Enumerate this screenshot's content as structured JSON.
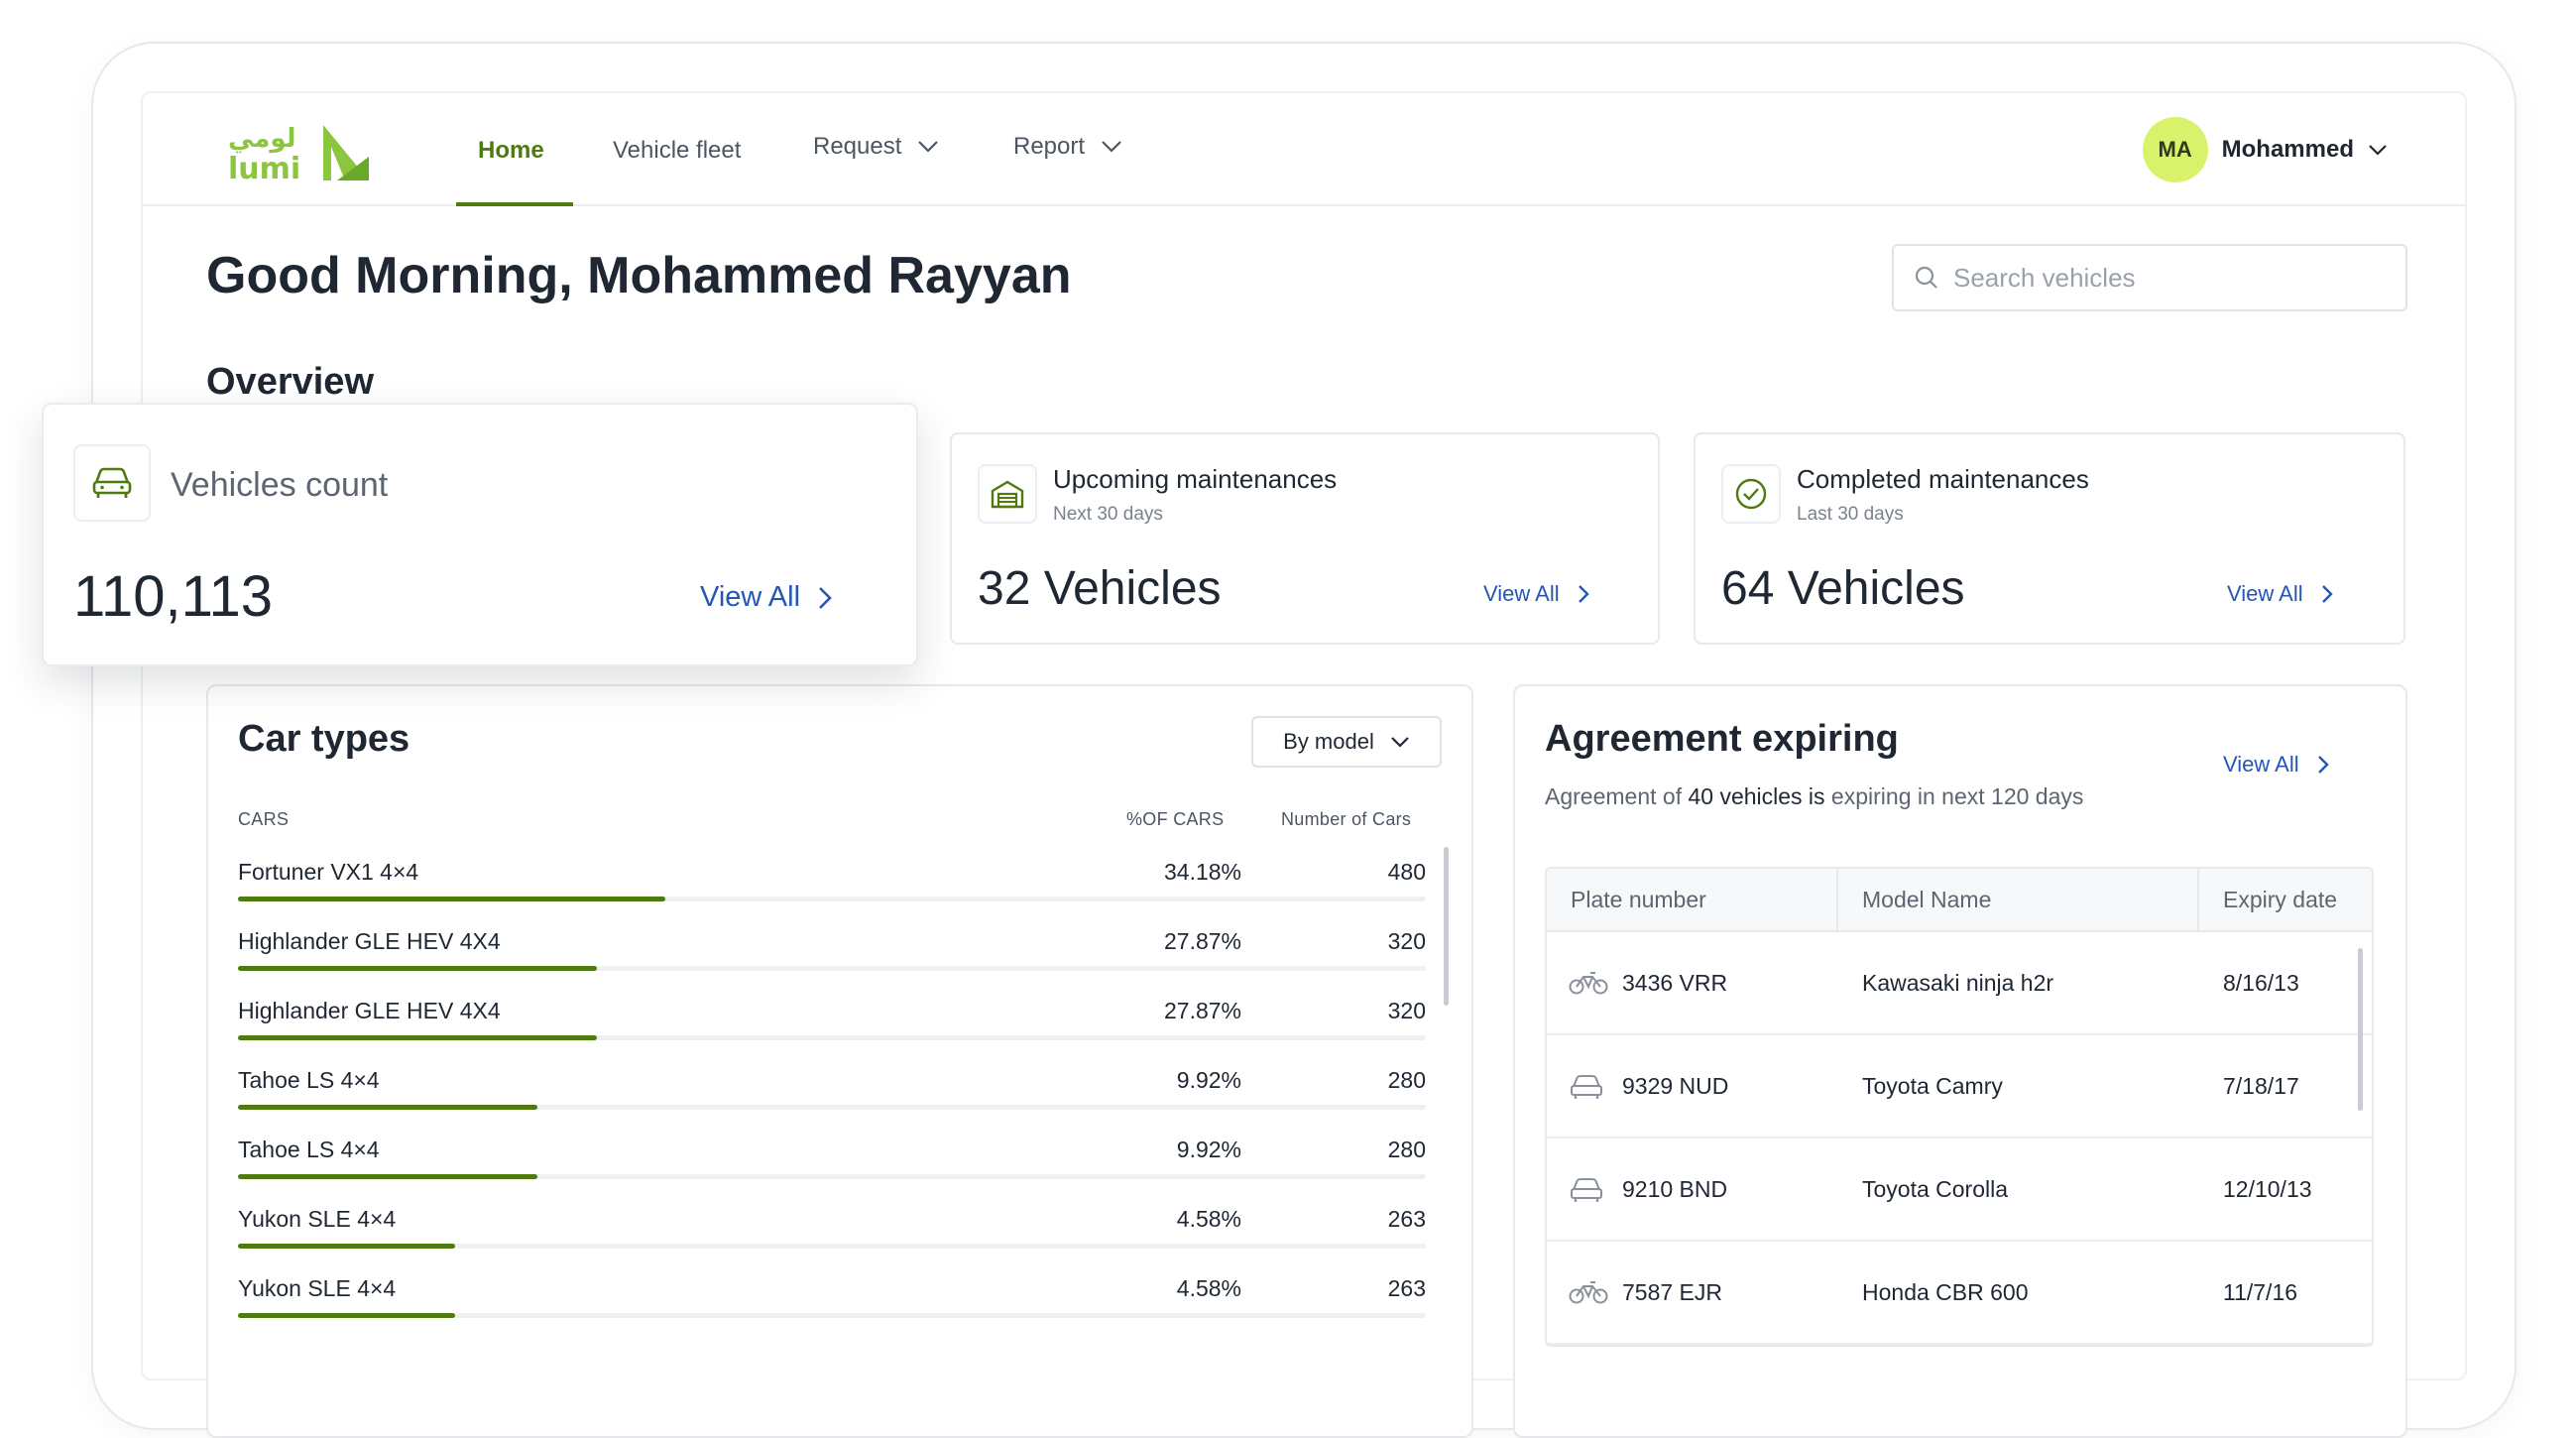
{
  "brand": {
    "logo_arabic": "لومي",
    "logo_latin": "lumi",
    "green": "#4e7a0f",
    "lime": "#8cc63f"
  },
  "nav": {
    "items": [
      {
        "label": "Home",
        "active": true
      },
      {
        "label": "Vehicle fleet",
        "active": false
      },
      {
        "label": "Request",
        "active": false,
        "dropdown": true
      },
      {
        "label": "Report",
        "active": false,
        "dropdown": true
      }
    ]
  },
  "user": {
    "initials": "MA",
    "name": "Mohammed"
  },
  "greeting": "Good Morning, Mohammed Rayyan",
  "search": {
    "placeholder": "Search vehicles"
  },
  "overview": {
    "title": "Overview",
    "cards": [
      {
        "title": "Vehicles count",
        "subtitle": "",
        "value": "110,113",
        "link": "View All",
        "icon": "car-icon"
      },
      {
        "title": "Upcoming maintenances",
        "subtitle": "Next 30 days",
        "value": "32 Vehicles",
        "link": "View All",
        "icon": "garage-icon"
      },
      {
        "title": "Completed maintenances",
        "subtitle": "Last 30 days",
        "value": "64 Vehicles",
        "link": "View All",
        "icon": "check-circle-icon"
      }
    ]
  },
  "car_types": {
    "title": "Car types",
    "filter": "By model",
    "columns": {
      "name": "CARS",
      "pct": "%OF CARS",
      "count": "Number of Cars"
    },
    "rows": [
      {
        "name": "Fortuner VX1 4×4",
        "pct": "34.18%",
        "count": "480",
        "fraction": 0.36
      },
      {
        "name": "Highlander GLE HEV 4X4",
        "pct": "27.87%",
        "count": "320",
        "fraction": 0.302
      },
      {
        "name": "Highlander GLE HEV 4X4",
        "pct": "27.87%",
        "count": "320",
        "fraction": 0.302
      },
      {
        "name": "Tahoe LS 4×4",
        "pct": "9.92%",
        "count": "280",
        "fraction": 0.252
      },
      {
        "name": "Tahoe LS 4×4",
        "pct": "9.92%",
        "count": "280",
        "fraction": 0.252
      },
      {
        "name": "Yukon SLE 4×4",
        "pct": "4.58%",
        "count": "263",
        "fraction": 0.183
      },
      {
        "name": "Yukon SLE 4×4",
        "pct": "4.58%",
        "count": "263",
        "fraction": 0.183
      }
    ]
  },
  "agreement": {
    "title": "Agreement expiring",
    "sub_prefix": "Agreement of ",
    "sub_count": "40 vehicles",
    "sub_is": " is",
    "sub_suffix": " expiring in next 120 days",
    "link": "View All",
    "columns": {
      "plate": "Plate number",
      "model": "Model Name",
      "expiry": "Expiry date"
    },
    "rows": [
      {
        "plate": "3436 VRR",
        "model": "Kawasaki ninja h2r",
        "expiry": "8/16/13",
        "icon": "motorcycle-icon"
      },
      {
        "plate": "9329 NUD",
        "model": "Toyota Camry",
        "expiry": "7/18/17",
        "icon": "car-icon"
      },
      {
        "plate": "9210 BND",
        "model": "Toyota Corolla",
        "expiry": "12/10/13",
        "icon": "car-icon"
      },
      {
        "plate": "7587 EJR",
        "model": "Honda CBR 600",
        "expiry": "11/7/16",
        "icon": "motorcycle-icon"
      }
    ]
  }
}
